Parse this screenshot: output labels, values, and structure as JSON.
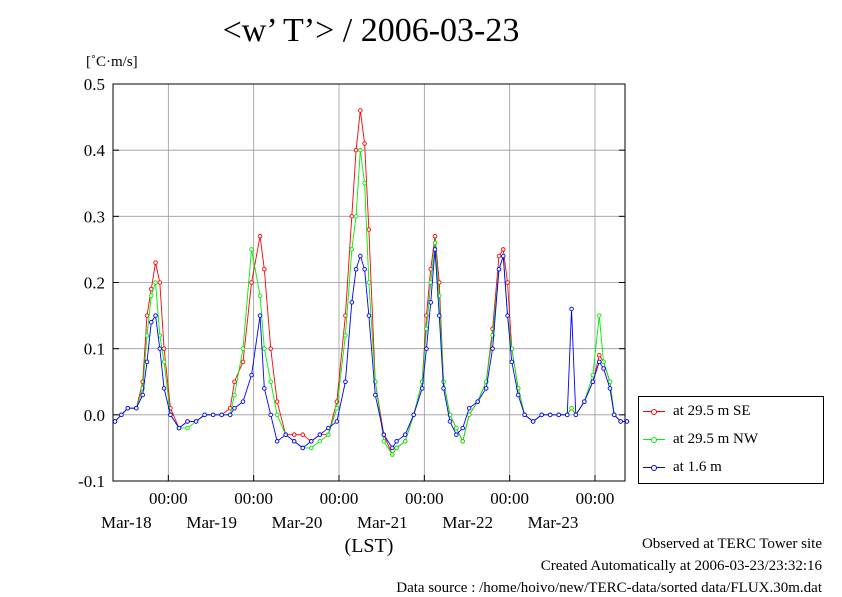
{
  "chart_data": {
    "type": "line",
    "title": "<w’ T’> / 2006-03-23",
    "ylabel": "[˚C·m/s]",
    "xlabel": "(LST)",
    "ylim": [
      -0.1,
      0.5
    ],
    "yticks": [
      "-0.1",
      "0.0",
      "0.1",
      "0.2",
      "0.3",
      "0.4",
      "0.5"
    ],
    "xlim_hours": [
      0,
      144
    ],
    "xticks": [
      {
        "hour": 24,
        "time": "00:00",
        "date": "Mar-18"
      },
      {
        "hour": 48,
        "time": "00:00",
        "date": "Mar-19"
      },
      {
        "hour": 72,
        "time": "00:00",
        "date": "Mar-20"
      },
      {
        "hour": 96,
        "time": "00:00",
        "date": "Mar-21"
      },
      {
        "hour": 120,
        "time": "00:00",
        "date": "Mar-22"
      },
      {
        "hour": 144,
        "time": "00:00",
        "date": "Mar-23"
      }
    ],
    "grid": true,
    "legend_position": "right",
    "series": [
      {
        "name": "at 29.5 m SE",
        "color": "#ff0000",
        "points": [
          [
            0,
            -0.01
          ],
          [
            1.5,
            0.0
          ],
          [
            3,
            0.01
          ],
          [
            5,
            0.01
          ],
          [
            6.5,
            0.05
          ],
          [
            7.5,
            0.15
          ],
          [
            8.5,
            0.19
          ],
          [
            9.5,
            0.23
          ],
          [
            10.5,
            0.2
          ],
          [
            11.5,
            0.1
          ],
          [
            13,
            0.01
          ],
          [
            15,
            -0.02
          ],
          [
            17,
            -0.01
          ],
          [
            19,
            -0.01
          ],
          [
            21,
            0.0
          ],
          [
            23,
            0.0
          ],
          [
            25,
            0.0
          ],
          [
            27,
            0.01
          ],
          [
            28,
            0.05
          ],
          [
            30,
            0.08
          ],
          [
            32,
            0.2
          ],
          [
            34,
            0.27
          ],
          [
            35,
            0.22
          ],
          [
            36.5,
            0.1
          ],
          [
            38,
            0.02
          ],
          [
            40,
            -0.03
          ],
          [
            42,
            -0.03
          ],
          [
            44,
            -0.03
          ],
          [
            46,
            -0.04
          ],
          [
            48,
            -0.03
          ],
          [
            50,
            -0.03
          ],
          [
            52,
            0.02
          ],
          [
            54,
            0.15
          ],
          [
            55.5,
            0.3
          ],
          [
            56.5,
            0.4
          ],
          [
            57.5,
            0.46
          ],
          [
            58.5,
            0.41
          ],
          [
            59.5,
            0.28
          ],
          [
            61,
            0.05
          ],
          [
            63,
            -0.03
          ],
          [
            65,
            -0.06
          ],
          [
            66,
            -0.05
          ],
          [
            68,
            -0.04
          ],
          [
            70,
            0.0
          ],
          [
            72,
            0.05
          ],
          [
            73,
            0.15
          ],
          [
            74,
            0.22
          ],
          [
            75,
            0.27
          ],
          [
            76,
            0.2
          ],
          [
            77,
            0.05
          ],
          [
            78.5,
            0.0
          ],
          [
            80,
            -0.02
          ],
          [
            81.5,
            -0.04
          ],
          [
            83,
            0.0
          ],
          [
            85,
            0.02
          ],
          [
            87,
            0.05
          ],
          [
            88.5,
            0.13
          ],
          [
            90,
            0.24
          ],
          [
            91,
            0.25
          ],
          [
            92,
            0.2
          ],
          [
            93,
            0.1
          ],
          [
            94.5,
            0.04
          ],
          [
            96,
            0.0
          ],
          [
            98,
            -0.01
          ],
          [
            100,
            0.0
          ],
          [
            102,
            0.0
          ],
          [
            104,
            0.0
          ],
          [
            106,
            0.0
          ],
          [
            107,
            0.01
          ],
          [
            108,
            0.0
          ],
          [
            110,
            0.02
          ],
          [
            112,
            0.05
          ],
          [
            113.5,
            0.09
          ],
          [
            114.5,
            0.08
          ],
          [
            116,
            0.05
          ],
          [
            117,
            0.0
          ],
          [
            118.5,
            -0.01
          ],
          [
            120,
            -0.01
          ]
        ]
      },
      {
        "name": "at 29.5 m NW",
        "color": "#00ee00",
        "points": [
          [
            0,
            -0.01
          ],
          [
            1.5,
            0.0
          ],
          [
            3,
            0.01
          ],
          [
            5,
            0.01
          ],
          [
            6.5,
            0.04
          ],
          [
            7.5,
            0.12
          ],
          [
            8.5,
            0.18
          ],
          [
            9.5,
            0.2
          ],
          [
            10.5,
            0.12
          ],
          [
            11.5,
            0.08
          ],
          [
            13,
            0.0
          ],
          [
            15,
            -0.02
          ],
          [
            17,
            -0.02
          ],
          [
            19,
            -0.01
          ],
          [
            21,
            0.0
          ],
          [
            23,
            0.0
          ],
          [
            25,
            0.0
          ],
          [
            27,
            0.0
          ],
          [
            28,
            0.03
          ],
          [
            30,
            0.1
          ],
          [
            32,
            0.25
          ],
          [
            34,
            0.18
          ],
          [
            35,
            0.1
          ],
          [
            36.5,
            0.05
          ],
          [
            38,
            0.0
          ],
          [
            40,
            -0.03
          ],
          [
            42,
            -0.04
          ],
          [
            44,
            -0.05
          ],
          [
            46,
            -0.05
          ],
          [
            48,
            -0.04
          ],
          [
            50,
            -0.03
          ],
          [
            52,
            0.01
          ],
          [
            54,
            0.12
          ],
          [
            55.5,
            0.25
          ],
          [
            56.5,
            0.3
          ],
          [
            57.5,
            0.4
          ],
          [
            58.5,
            0.35
          ],
          [
            59.5,
            0.2
          ],
          [
            61,
            0.05
          ],
          [
            63,
            -0.04
          ],
          [
            65,
            -0.06
          ],
          [
            66,
            -0.05
          ],
          [
            68,
            -0.04
          ],
          [
            70,
            0.0
          ],
          [
            72,
            0.05
          ],
          [
            73,
            0.13
          ],
          [
            74,
            0.2
          ],
          [
            75,
            0.26
          ],
          [
            76,
            0.18
          ],
          [
            77,
            0.05
          ],
          [
            78.5,
            0.0
          ],
          [
            80,
            -0.02
          ],
          [
            81.5,
            -0.04
          ],
          [
            83,
            0.0
          ],
          [
            85,
            0.02
          ],
          [
            87,
            0.05
          ],
          [
            88.5,
            0.12
          ],
          [
            90,
            0.22
          ],
          [
            91,
            0.24
          ],
          [
            92,
            0.15
          ],
          [
            93,
            0.1
          ],
          [
            94.5,
            0.04
          ],
          [
            96,
            0.0
          ],
          [
            98,
            -0.01
          ],
          [
            100,
            0.0
          ],
          [
            102,
            0.0
          ],
          [
            104,
            0.0
          ],
          [
            106,
            0.0
          ],
          [
            107,
            0.01
          ],
          [
            108,
            0.0
          ],
          [
            110,
            0.02
          ],
          [
            112,
            0.06
          ],
          [
            113.5,
            0.15
          ],
          [
            114.5,
            0.08
          ],
          [
            116,
            0.05
          ],
          [
            117,
            0.0
          ],
          [
            118.5,
            -0.01
          ],
          [
            120,
            -0.01
          ]
        ]
      },
      {
        "name": "at 1.6 m",
        "color": "#0000ff",
        "points": [
          [
            0,
            -0.01
          ],
          [
            1.5,
            0.0
          ],
          [
            3,
            0.01
          ],
          [
            5,
            0.01
          ],
          [
            6.5,
            0.03
          ],
          [
            7.5,
            0.08
          ],
          [
            8.5,
            0.14
          ],
          [
            9.5,
            0.15
          ],
          [
            10.5,
            0.1
          ],
          [
            11.5,
            0.04
          ],
          [
            13,
            0.0
          ],
          [
            15,
            -0.02
          ],
          [
            17,
            -0.01
          ],
          [
            19,
            -0.01
          ],
          [
            21,
            0.0
          ],
          [
            23,
            0.0
          ],
          [
            25,
            0.0
          ],
          [
            27,
            0.0
          ],
          [
            28,
            0.01
          ],
          [
            30,
            0.02
          ],
          [
            32,
            0.06
          ],
          [
            34,
            0.15
          ],
          [
            35,
            0.04
          ],
          [
            36.5,
            0.0
          ],
          [
            38,
            -0.04
          ],
          [
            40,
            -0.03
          ],
          [
            42,
            -0.04
          ],
          [
            44,
            -0.05
          ],
          [
            46,
            -0.04
          ],
          [
            48,
            -0.03
          ],
          [
            50,
            -0.02
          ],
          [
            52,
            -0.01
          ],
          [
            54,
            0.05
          ],
          [
            55.5,
            0.17
          ],
          [
            56.5,
            0.22
          ],
          [
            57.5,
            0.24
          ],
          [
            58.5,
            0.22
          ],
          [
            59.5,
            0.15
          ],
          [
            61,
            0.03
          ],
          [
            63,
            -0.03
          ],
          [
            65,
            -0.05
          ],
          [
            66,
            -0.04
          ],
          [
            68,
            -0.03
          ],
          [
            70,
            0.0
          ],
          [
            72,
            0.04
          ],
          [
            73,
            0.1
          ],
          [
            74,
            0.17
          ],
          [
            75,
            0.25
          ],
          [
            76,
            0.15
          ],
          [
            77,
            0.04
          ],
          [
            78.5,
            -0.01
          ],
          [
            80,
            -0.03
          ],
          [
            81.5,
            -0.02
          ],
          [
            83,
            0.01
          ],
          [
            85,
            0.02
          ],
          [
            87,
            0.04
          ],
          [
            88.5,
            0.1
          ],
          [
            90,
            0.22
          ],
          [
            91,
            0.24
          ],
          [
            92,
            0.15
          ],
          [
            93,
            0.08
          ],
          [
            94.5,
            0.03
          ],
          [
            96,
            0.0
          ],
          [
            98,
            -0.01
          ],
          [
            100,
            0.0
          ],
          [
            102,
            0.0
          ],
          [
            104,
            0.0
          ],
          [
            106,
            0.0
          ],
          [
            107,
            0.16
          ],
          [
            108,
            0.0
          ],
          [
            110,
            0.02
          ],
          [
            112,
            0.05
          ],
          [
            113.5,
            0.08
          ],
          [
            114.5,
            0.07
          ],
          [
            116,
            0.04
          ],
          [
            117,
            0.0
          ],
          [
            118.5,
            -0.01
          ],
          [
            120,
            -0.01
          ]
        ]
      }
    ]
  },
  "footer": {
    "line1": "Observed at TERC Tower site",
    "line2": "Created Automatically at 2006-03-23/23:32:16",
    "line3": "Data source : /home/hoivo/new/TERC-data/sorted  data/FLUX.30m.dat"
  }
}
